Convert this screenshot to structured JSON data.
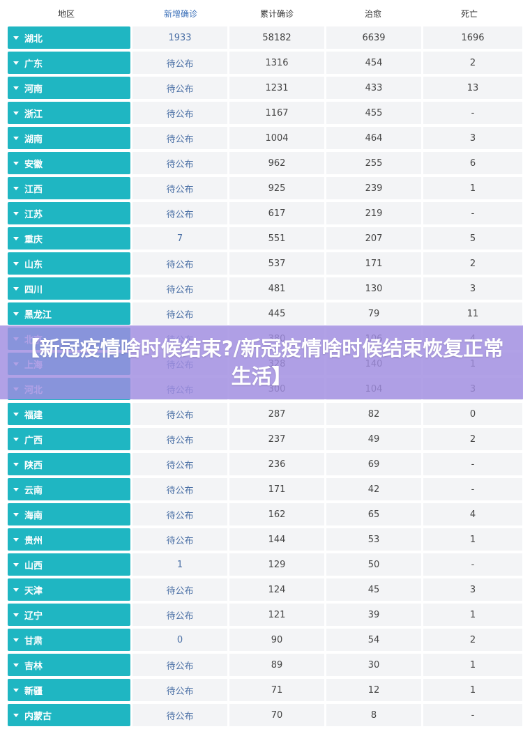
{
  "colors": {
    "region_bg": "#1fb6c2",
    "cell_bg": "#f3f4f6",
    "new_text": "#4a6fa5",
    "banner_bg": "#a08ce1"
  },
  "header": {
    "region": "地区",
    "new_confirmed": "新增确诊",
    "total_confirmed": "累计确诊",
    "cured": "治愈",
    "dead": "死亡"
  },
  "rows": [
    {
      "region": "湖北",
      "new": "1933",
      "total": "58182",
      "cured": "6639",
      "dead": "1696"
    },
    {
      "region": "广东",
      "new": "待公布",
      "total": "1316",
      "cured": "454",
      "dead": "2"
    },
    {
      "region": "河南",
      "new": "待公布",
      "total": "1231",
      "cured": "433",
      "dead": "13"
    },
    {
      "region": "浙江",
      "new": "待公布",
      "total": "1167",
      "cured": "455",
      "dead": "-"
    },
    {
      "region": "湖南",
      "new": "待公布",
      "total": "1004",
      "cured": "464",
      "dead": "3"
    },
    {
      "region": "安徽",
      "new": "待公布",
      "total": "962",
      "cured": "255",
      "dead": "6"
    },
    {
      "region": "江西",
      "new": "待公布",
      "total": "925",
      "cured": "239",
      "dead": "1"
    },
    {
      "region": "江苏",
      "new": "待公布",
      "total": "617",
      "cured": "219",
      "dead": "-"
    },
    {
      "region": "重庆",
      "new": "7",
      "total": "551",
      "cured": "207",
      "dead": "5"
    },
    {
      "region": "山东",
      "new": "待公布",
      "total": "537",
      "cured": "171",
      "dead": "2"
    },
    {
      "region": "四川",
      "new": "待公布",
      "total": "481",
      "cured": "130",
      "dead": "3"
    },
    {
      "region": "黑龙江",
      "new": "待公布",
      "total": "445",
      "cured": "79",
      "dead": "11"
    },
    {
      "region": "北京",
      "new": "待公布",
      "total": "380",
      "cured": "106",
      "dead": "4"
    },
    {
      "region": "上海",
      "new": "待公布",
      "total": "328",
      "cured": "140",
      "dead": "1"
    },
    {
      "region": "河北",
      "new": "待公布",
      "total": "300",
      "cured": "104",
      "dead": "3"
    },
    {
      "region": "福建",
      "new": "待公布",
      "total": "287",
      "cured": "82",
      "dead": "0"
    },
    {
      "region": "广西",
      "new": "待公布",
      "total": "237",
      "cured": "49",
      "dead": "2"
    },
    {
      "region": "陕西",
      "new": "待公布",
      "total": "236",
      "cured": "69",
      "dead": "-"
    },
    {
      "region": "云南",
      "new": "待公布",
      "total": "171",
      "cured": "42",
      "dead": "-"
    },
    {
      "region": "海南",
      "new": "待公布",
      "total": "162",
      "cured": "65",
      "dead": "4"
    },
    {
      "region": "贵州",
      "new": "待公布",
      "total": "144",
      "cured": "53",
      "dead": "1"
    },
    {
      "region": "山西",
      "new": "1",
      "total": "129",
      "cured": "50",
      "dead": "-"
    },
    {
      "region": "天津",
      "new": "待公布",
      "total": "124",
      "cured": "45",
      "dead": "3"
    },
    {
      "region": "辽宁",
      "new": "待公布",
      "total": "121",
      "cured": "39",
      "dead": "1"
    },
    {
      "region": "甘肃",
      "new": "0",
      "total": "90",
      "cured": "54",
      "dead": "2"
    },
    {
      "region": "吉林",
      "new": "待公布",
      "total": "89",
      "cured": "30",
      "dead": "1"
    },
    {
      "region": "新疆",
      "new": "待公布",
      "total": "71",
      "cured": "12",
      "dead": "1"
    },
    {
      "region": "内蒙古",
      "new": "待公布",
      "total": "70",
      "cured": "8",
      "dead": "-"
    }
  ],
  "banner": {
    "text": "【新冠疫情啥时候结束?/新冠疫情啥时候结束恢复正常生活】"
  }
}
